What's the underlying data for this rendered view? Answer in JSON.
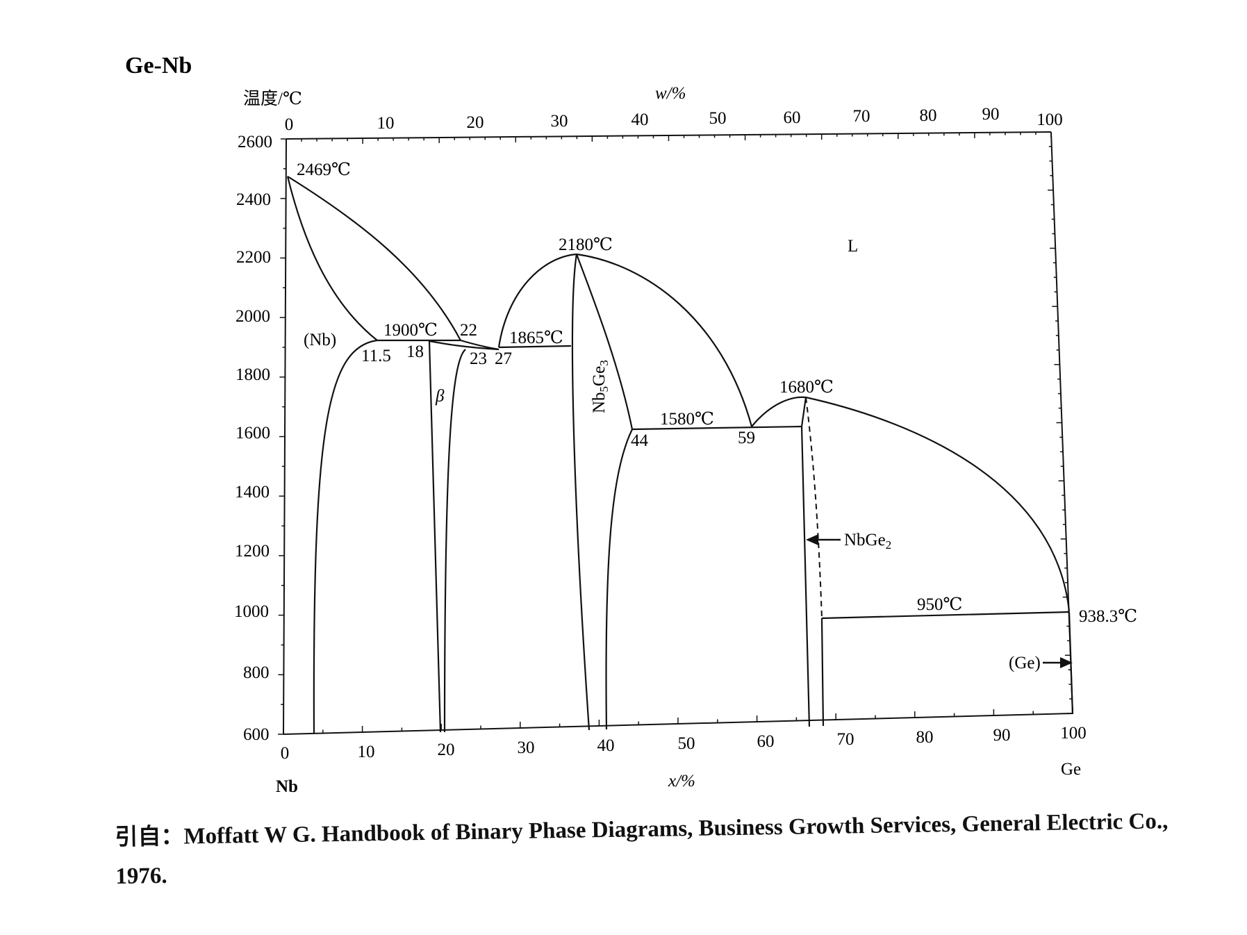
{
  "title": "Ge-Nb",
  "axes": {
    "y_label": "温度/℃",
    "top_label": "w/%",
    "bottom_label": "x/%",
    "left_element": "Nb",
    "right_element": "Ge",
    "y_ticks": [
      "2600",
      "2400",
      "2200",
      "2000",
      "1800",
      "1600",
      "1400",
      "1200",
      "1000",
      "800",
      "600"
    ],
    "x_ticks": [
      "0",
      "10",
      "20",
      "30",
      "40",
      "50",
      "60",
      "70",
      "80",
      "90",
      "100"
    ],
    "top_ticks": [
      "0",
      "10",
      "20",
      "30",
      "40",
      "50",
      "60",
      "70",
      "80",
      "90",
      "100"
    ]
  },
  "labels": {
    "t2469": "2469℃",
    "t2180": "2180℃",
    "L": "L",
    "t1900": "1900℃",
    "n22": "22",
    "Nb_phase": "(Nb)",
    "n115": "11.5",
    "n18": "18",
    "t1865": "1865℃",
    "n23": "23",
    "n27": "27",
    "beta": "β",
    "nb5ge3": "Nb5Ge3",
    "t1680": "1680℃",
    "t1580": "1580℃",
    "n44": "44",
    "n59": "59",
    "nbge2": "NbGe2",
    "t950": "950℃",
    "t9383": "938.3℃",
    "ge_phase": "(Ge)"
  },
  "citation": {
    "prefix": "引自：",
    "text": "Moffatt W G. Handbook of Binary Phase Diagrams, Business Growth Services, General Electric Co.,",
    "year": "1976."
  },
  "chart_data": {
    "type": "phase-diagram",
    "x_unit": "x/% (atomic)",
    "y_unit": "温度/℃",
    "xlim": [
      0,
      100
    ],
    "ylim": [
      600,
      2600
    ],
    "points": {
      "nb_melting": [
        0,
        2469
      ],
      "peritectic": [
        11.5,
        1900
      ],
      "eutectic_1865": [
        27,
        1865
      ],
      "nb5ge3_congruent": [
        37.5,
        2180
      ],
      "eutectic_1580": [
        59,
        1580
      ],
      "nbge2_congruent": [
        66.5,
        1680
      ],
      "eutectic_950": [
        100,
        950
      ],
      "ge_melting": [
        100,
        938.3
      ]
    }
  }
}
